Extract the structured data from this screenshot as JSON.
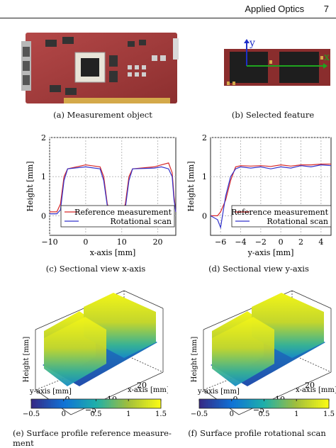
{
  "header": {
    "journal": "Applied Optics",
    "page": "7"
  },
  "captions": {
    "a": "(a)  Measurement object",
    "b": "(b)  Selected feature",
    "c": "(c)  Sectional view x-axis",
    "d": "(d)  Sectional view y-axis",
    "e_line1": "(e)  Surface profile reference measure-",
    "e_line2": "ment",
    "f": "(f)  Surface profile rotational scan"
  },
  "feature_axes": {
    "y": "y",
    "x": "x"
  },
  "colors": {
    "reference": "#d62728",
    "rotational": "#3333cc",
    "grid": "#bbbbbb",
    "pcb": "#a33a3a",
    "green_axis": "#1fa51f",
    "blue_axis": "#1f2fc8"
  },
  "chart_data": [
    {
      "type": "line",
      "title": "",
      "xlabel": "x-axis [mm]",
      "ylabel": "Height [mm]",
      "xlim": [
        -10,
        25
      ],
      "ylim": [
        -0.5,
        2
      ],
      "xticks": [
        "−10",
        "0",
        "10",
        "20"
      ],
      "yticks": [
        "0",
        "1",
        "2"
      ],
      "legend_position": "lower-center",
      "series": [
        {
          "name": "Reference measurement",
          "x": [
            -10,
            -8,
            -7,
            -6,
            -5,
            0,
            4,
            5,
            6,
            7,
            10,
            11,
            12,
            13,
            19,
            21,
            23,
            24,
            24.5,
            25
          ],
          "y": [
            0.1,
            0.1,
            0.3,
            1.0,
            1.2,
            1.3,
            1.25,
            1.0,
            0.3,
            0.07,
            0.05,
            0.3,
            1.0,
            1.2,
            1.25,
            1.3,
            1.35,
            1.1,
            0.5,
            0.1
          ]
        },
        {
          "name": "Rotational scan",
          "x": [
            -10,
            -8,
            -7,
            -6,
            -5,
            0,
            4,
            5,
            6,
            7,
            10,
            11,
            12,
            13,
            19,
            21,
            23,
            24,
            24.5,
            25
          ],
          "y": [
            0.05,
            0.05,
            0.15,
            0.9,
            1.2,
            1.25,
            1.2,
            0.9,
            0.25,
            0.07,
            0.05,
            0.2,
            0.9,
            1.2,
            1.22,
            1.25,
            1.2,
            1.0,
            0.4,
            0.1
          ]
        }
      ]
    },
    {
      "type": "line",
      "title": "",
      "xlabel": "y-axis [mm]",
      "ylabel": "Height [mm]",
      "xlim": [
        -7,
        5
      ],
      "ylim": [
        -0.5,
        2
      ],
      "xticks": [
        "−6",
        "−4",
        "−2",
        "0",
        "2",
        "4"
      ],
      "yticks": [
        "0",
        "1",
        "2"
      ],
      "legend_position": "lower-right",
      "series": [
        {
          "name": "Reference measurement",
          "x": [
            -7,
            -6.3,
            -6,
            -5.5,
            -5,
            -4.5,
            -4,
            -3,
            -2,
            -1,
            0,
            1,
            2,
            3,
            4,
            5
          ],
          "y": [
            0,
            0,
            0.1,
            0.4,
            0.9,
            1.25,
            1.28,
            1.27,
            1.28,
            1.26,
            1.3,
            1.27,
            1.3,
            1.3,
            1.32,
            1.32
          ]
        },
        {
          "name": "Rotational scan",
          "x": [
            -7,
            -6.3,
            -6,
            -5.5,
            -5,
            -4.5,
            -4,
            -3,
            -2,
            -1,
            0,
            1,
            2,
            3,
            4,
            5
          ],
          "y": [
            0,
            -0.1,
            -0.3,
            0.5,
            1.0,
            1.2,
            1.25,
            1.22,
            1.25,
            1.2,
            1.25,
            1.22,
            1.28,
            1.25,
            1.3,
            1.28
          ]
        }
      ]
    },
    {
      "type": "heatmap",
      "title": "",
      "xlabel": "x-axis [mm]",
      "ylabel": "Height [mm]",
      "zlabel": "y-axis [mm]",
      "xticks": [
        "10",
        "20"
      ],
      "yticks": [
        "0",
        "−5"
      ],
      "colorbar_ticks": [
        "−0.5",
        "0",
        "0.5",
        "1",
        "1.5"
      ],
      "colorbar_range": [
        -0.5,
        1.5
      ]
    },
    {
      "type": "heatmap",
      "title": "",
      "xlabel": "x-axis [mm]",
      "ylabel": "Height [mm]",
      "zlabel": "y-axis [mm]",
      "xticks": [
        "10",
        "20"
      ],
      "yticks": [
        "0",
        "−5"
      ],
      "colorbar_ticks": [
        "−0.5",
        "0",
        "0.5",
        "1",
        "1.5"
      ],
      "colorbar_range": [
        -0.5,
        1.5
      ]
    }
  ]
}
